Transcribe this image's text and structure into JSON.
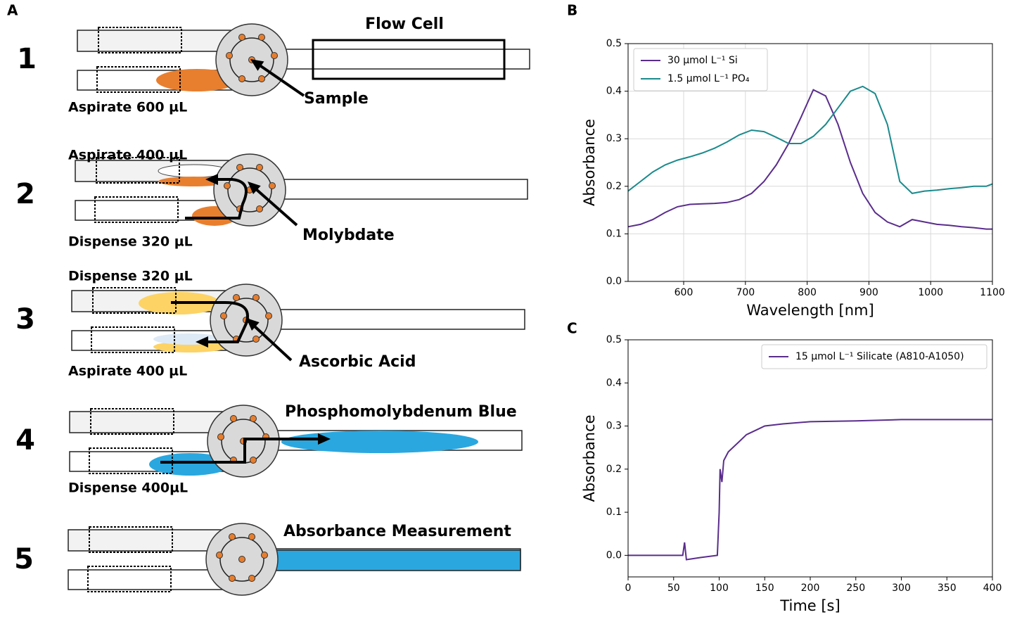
{
  "panels": [
    "A",
    "B",
    "C"
  ],
  "diagram": {
    "steps": [
      {
        "number": "1",
        "labels": [
          "Flow Cell",
          "Aspirate 600 µL",
          "Sample"
        ]
      },
      {
        "number": "2",
        "labels": [
          "Aspirate 400 µL",
          "Dispense 320 µL",
          "Molybdate"
        ]
      },
      {
        "number": "3",
        "labels": [
          "Dispense 320 µL",
          "Aspirate 400 µL",
          "Ascorbic Acid"
        ]
      },
      {
        "number": "4",
        "labels": [
          "Phosphomolybdenum Blue",
          "Dispense 400µL"
        ]
      },
      {
        "number": "5",
        "labels": [
          "Absorbance Measurement"
        ]
      }
    ]
  },
  "chart_data": [
    {
      "type": "line",
      "xlabel": "Wavelength [nm]",
      "ylabel": "Absorbance",
      "x": [
        510,
        530,
        550,
        570,
        590,
        610,
        630,
        650,
        670,
        690,
        710,
        730,
        750,
        770,
        790,
        810,
        830,
        850,
        870,
        890,
        910,
        930,
        950,
        970,
        990,
        1010,
        1030,
        1050,
        1070,
        1090,
        1100
      ],
      "series": [
        {
          "name": "30 μmol L⁻¹ Si",
          "color": "#5a2d8c",
          "values": [
            0.115,
            0.12,
            0.13,
            0.145,
            0.157,
            0.162,
            0.163,
            0.164,
            0.166,
            0.172,
            0.185,
            0.21,
            0.245,
            0.29,
            0.345,
            0.403,
            0.39,
            0.33,
            0.25,
            0.185,
            0.145,
            0.125,
            0.115,
            0.13,
            0.125,
            0.12,
            0.118,
            0.115,
            0.113,
            0.11,
            0.11
          ]
        },
        {
          "name": "1.5 μmol L⁻¹ PO₄",
          "color": "#1b8a8c",
          "values": [
            0.19,
            0.21,
            0.23,
            0.245,
            0.255,
            0.262,
            0.27,
            0.28,
            0.293,
            0.308,
            0.318,
            0.315,
            0.303,
            0.29,
            0.29,
            0.305,
            0.33,
            0.365,
            0.4,
            0.41,
            0.395,
            0.33,
            0.21,
            0.185,
            0.19,
            0.192,
            0.195,
            0.197,
            0.2,
            0.2,
            0.205
          ]
        }
      ],
      "xlim": [
        510,
        1100
      ],
      "ylim": [
        0,
        0.5
      ],
      "xticks": [
        600,
        700,
        800,
        900,
        1000,
        1100
      ],
      "yticks": [
        {
          "value": 0,
          "label": "0.0"
        },
        0.1,
        0.2,
        0.3,
        0.4,
        0.5
      ],
      "grid": true,
      "legend": "upper left"
    },
    {
      "type": "line",
      "xlabel": "Time [s]",
      "ylabel": "Absorbance",
      "x": [
        0,
        20,
        40,
        60,
        62,
        64,
        80,
        98,
        100,
        101,
        103,
        105,
        110,
        120,
        130,
        140,
        150,
        170,
        200,
        250,
        300,
        350,
        400
      ],
      "series": [
        {
          "name": "15 μmol L⁻¹ Silicate (A810-A1050)",
          "color": "#5a2d8c",
          "values": [
            0,
            0,
            0,
            0,
            0.03,
            -0.01,
            -0.005,
            0,
            0.1,
            0.2,
            0.17,
            0.22,
            0.24,
            0.26,
            0.28,
            0.29,
            0.3,
            0.305,
            0.31,
            0.312,
            0.315,
            0.315,
            0.315
          ]
        }
      ],
      "xlim": [
        0,
        400
      ],
      "ylim": [
        -0.05,
        0.5
      ],
      "xticks": [
        0,
        50,
        100,
        150,
        200,
        250,
        300,
        350,
        400
      ],
      "yticks": [
        {
          "value": 0,
          "label": "0.0"
        },
        0.1,
        0.2,
        0.3,
        0.4,
        0.5
      ],
      "grid": false,
      "legend": "upper right"
    }
  ]
}
